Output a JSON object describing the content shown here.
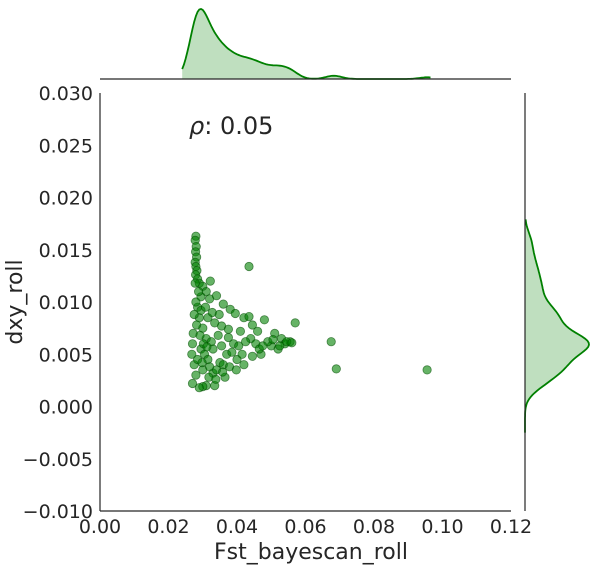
{
  "chart_data": {
    "type": "scatter",
    "title": "",
    "xlabel": "Fst_bayescan_roll",
    "ylabel": "dxy_roll",
    "xlim": [
      0.0,
      0.12
    ],
    "ylim": [
      -0.01,
      0.03
    ],
    "xticks": [
      "0.00",
      "0.02",
      "0.04",
      "0.06",
      "0.08",
      "0.10",
      "0.12"
    ],
    "xtick_values": [
      0.0,
      0.02,
      0.04,
      0.06,
      0.08,
      0.1,
      0.12
    ],
    "yticks": [
      "−0.010",
      "−0.005",
      "0.000",
      "0.005",
      "0.010",
      "0.015",
      "0.020",
      "0.025",
      "0.030"
    ],
    "ytick_values": [
      -0.01,
      -0.005,
      0.0,
      0.005,
      0.01,
      0.015,
      0.02,
      0.025,
      0.03
    ],
    "annotation": {
      "symbol": "ρ",
      "text": ": 0.05"
    },
    "grid": false,
    "marginals": [
      "top: x density (kde)",
      "right: y density (kde)"
    ],
    "color": "#008000",
    "points": [
      [
        0.028,
        0.0163
      ],
      [
        0.0278,
        0.0159
      ],
      [
        0.0281,
        0.0153
      ],
      [
        0.0279,
        0.0148
      ],
      [
        0.0282,
        0.0143
      ],
      [
        0.0278,
        0.0138
      ],
      [
        0.028,
        0.0134
      ],
      [
        0.0283,
        0.013
      ],
      [
        0.0279,
        0.0126
      ],
      [
        0.0285,
        0.0122
      ],
      [
        0.0322,
        0.012
      ],
      [
        0.0435,
        0.0134
      ],
      [
        0.029,
        0.0118
      ],
      [
        0.03,
        0.0115
      ],
      [
        0.031,
        0.011
      ],
      [
        0.0295,
        0.0105
      ],
      [
        0.032,
        0.0103
      ],
      [
        0.034,
        0.0106
      ],
      [
        0.036,
        0.0098
      ],
      [
        0.038,
        0.0093
      ],
      [
        0.0395,
        0.0089
      ],
      [
        0.042,
        0.0085
      ],
      [
        0.0435,
        0.0086
      ],
      [
        0.048,
        0.0083
      ],
      [
        0.057,
        0.008
      ],
      [
        0.0445,
        0.0078
      ],
      [
        0.046,
        0.0072
      ],
      [
        0.051,
        0.007
      ],
      [
        0.053,
        0.0065
      ],
      [
        0.0555,
        0.0062
      ],
      [
        0.0675,
        0.0062
      ],
      [
        0.05,
        0.0058
      ],
      [
        0.052,
        0.0055
      ],
      [
        0.047,
        0.005
      ],
      [
        0.069,
        0.0036
      ],
      [
        0.0955,
        0.0035
      ],
      [
        0.0365,
        0.0028
      ],
      [
        0.033,
        0.0032
      ],
      [
        0.031,
        0.002
      ],
      [
        0.03,
        0.0019
      ],
      [
        0.029,
        0.0018
      ],
      [
        0.027,
        0.0022
      ],
      [
        0.028,
        0.003
      ],
      [
        0.0335,
        0.002
      ],
      [
        0.04,
        0.0045
      ],
      [
        0.042,
        0.004
      ],
      [
        0.044,
        0.0065
      ],
      [
        0.041,
        0.0072
      ],
      [
        0.039,
        0.006
      ],
      [
        0.037,
        0.005
      ],
      [
        0.035,
        0.0042
      ],
      [
        0.033,
        0.0055
      ],
      [
        0.031,
        0.0065
      ],
      [
        0.03,
        0.0075
      ],
      [
        0.029,
        0.0085
      ],
      [
        0.0285,
        0.0095
      ],
      [
        0.0275,
        0.0088
      ],
      [
        0.0272,
        0.007
      ],
      [
        0.027,
        0.006
      ],
      [
        0.0268,
        0.005
      ],
      [
        0.0275,
        0.004
      ],
      [
        0.0285,
        0.0045
      ],
      [
        0.0295,
        0.0055
      ],
      [
        0.0305,
        0.005
      ],
      [
        0.0315,
        0.0045
      ],
      [
        0.0325,
        0.0062
      ],
      [
        0.0345,
        0.0068
      ],
      [
        0.0355,
        0.0058
      ],
      [
        0.0375,
        0.0066
      ],
      [
        0.0385,
        0.0052
      ],
      [
        0.0405,
        0.0058
      ],
      [
        0.0425,
        0.0062
      ],
      [
        0.0455,
        0.006
      ],
      [
        0.0465,
        0.0055
      ],
      [
        0.049,
        0.0062
      ],
      [
        0.054,
        0.006
      ],
      [
        0.03,
        0.0035
      ],
      [
        0.032,
        0.0038
      ],
      [
        0.034,
        0.0035
      ],
      [
        0.036,
        0.004
      ],
      [
        0.028,
        0.01
      ],
      [
        0.0295,
        0.0092
      ],
      [
        0.0315,
        0.0085
      ],
      [
        0.0335,
        0.008
      ],
      [
        0.0355,
        0.0077
      ],
      [
        0.0375,
        0.0074
      ],
      [
        0.0282,
        0.0078
      ],
      [
        0.0292,
        0.0068
      ],
      [
        0.0302,
        0.006
      ],
      [
        0.0312,
        0.0057
      ],
      [
        0.0288,
        0.011
      ],
      [
        0.0278,
        0.0118
      ],
      [
        0.0308,
        0.0095
      ],
      [
        0.0328,
        0.009
      ],
      [
        0.0348,
        0.0088
      ],
      [
        0.0298,
        0.0042
      ],
      [
        0.0318,
        0.0028
      ],
      [
        0.0338,
        0.0026
      ],
      [
        0.0358,
        0.0033
      ],
      [
        0.0378,
        0.0038
      ],
      [
        0.0398,
        0.0035
      ],
      [
        0.0415,
        0.005
      ],
      [
        0.0445,
        0.0048
      ],
      [
        0.0475,
        0.0058
      ],
      [
        0.0505,
        0.0064
      ],
      [
        0.0525,
        0.0058
      ],
      [
        0.0545,
        0.0062
      ],
      [
        0.056,
        0.0061
      ]
    ]
  }
}
